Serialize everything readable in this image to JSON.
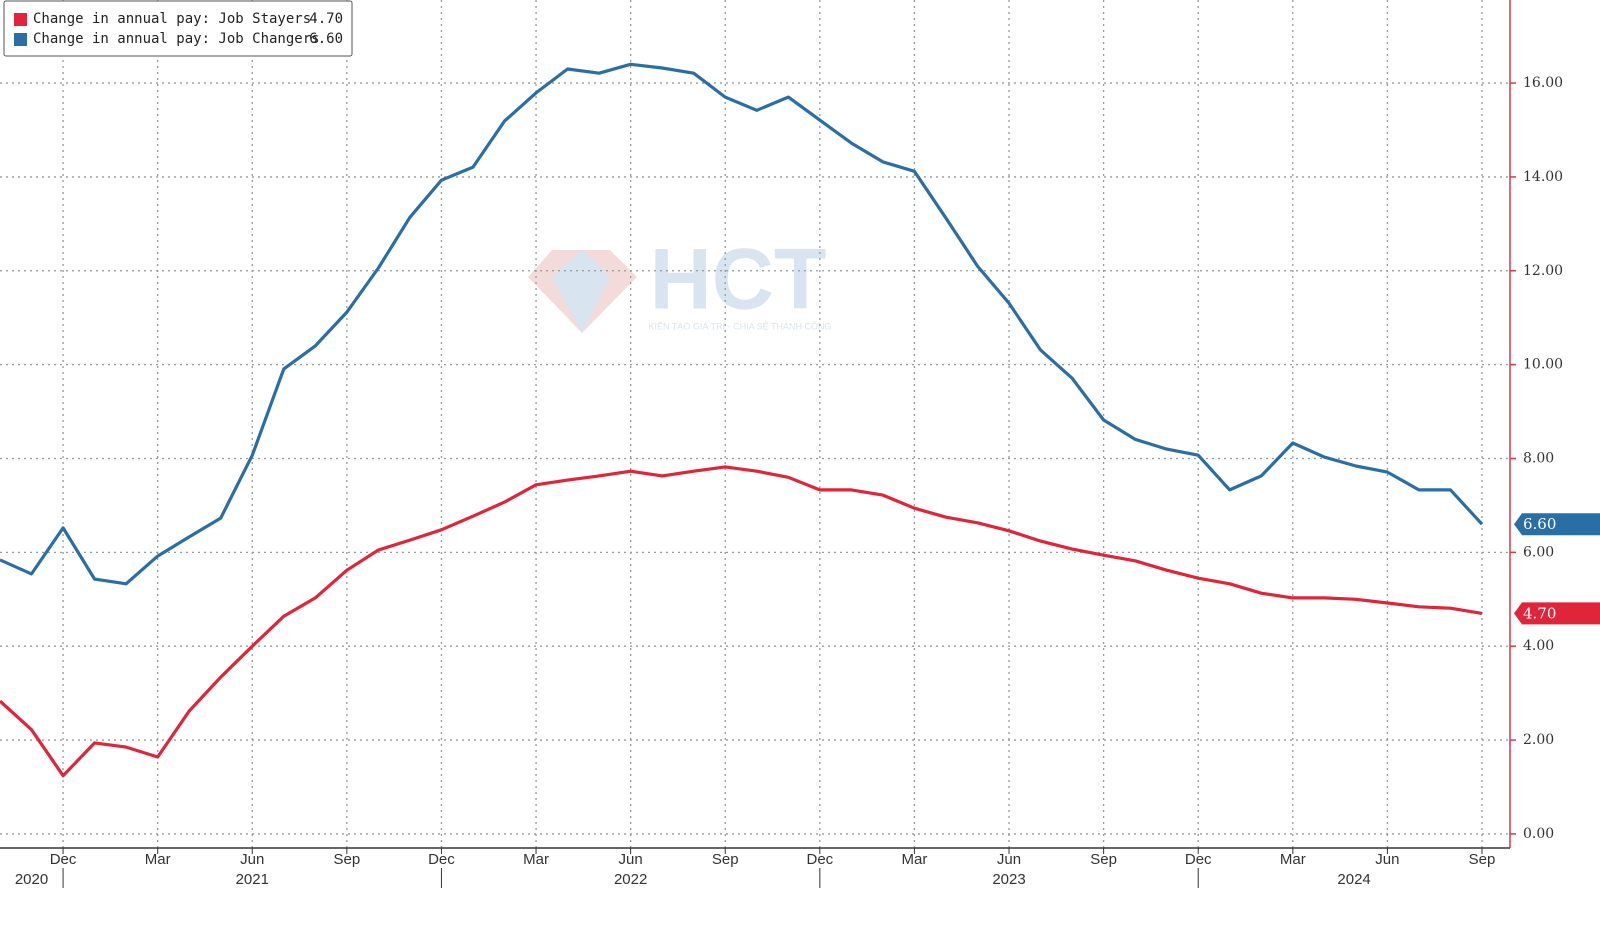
{
  "chart_data": {
    "type": "line",
    "watermark": {
      "brand": "HCT",
      "slogan": "KIẾN TẠO GIÁ TRỊ - CHIA SẺ THÀNH CÔNG"
    },
    "categories": [
      null,
      null,
      "Dec",
      null,
      null,
      "Mar",
      null,
      null,
      "Jun",
      null,
      null,
      "Sep",
      null,
      null,
      "Dec",
      null,
      null,
      "Mar",
      null,
      null,
      "Jun",
      null,
      null,
      "Sep",
      null,
      null,
      "Dec",
      null,
      null,
      "Mar",
      null,
      null,
      "Jun",
      null,
      null,
      "Sep",
      null,
      null,
      "Dec",
      null,
      null,
      "Mar",
      null,
      null,
      "Jun",
      null,
      null,
      "Sep"
    ],
    "years": [
      "2020",
      "2021",
      "2022",
      "2023",
      "2024"
    ],
    "series": [
      {
        "name": "Change in annual pay: Job Stayers",
        "color": "#e0243a",
        "values": [
          2.83,
          2.22,
          1.24,
          1.94,
          1.85,
          1.64,
          2.62,
          3.34,
          4.0,
          4.64,
          5.03,
          5.62,
          6.05,
          6.26,
          6.48,
          6.77,
          7.07,
          7.44,
          7.54,
          7.63,
          7.73,
          7.63,
          7.73,
          7.82,
          7.73,
          7.6,
          7.33,
          7.33,
          7.22,
          6.94,
          6.75,
          6.63,
          6.46,
          6.24,
          6.07,
          5.94,
          5.82,
          5.62,
          5.45,
          5.33,
          5.13,
          5.03,
          5.03,
          5.0,
          4.92,
          4.84,
          4.81,
          4.7
        ],
        "value_labels": [
          null,
          null,
          null,
          null,
          null,
          null,
          null,
          null,
          null,
          null,
          null,
          null,
          null,
          null,
          null,
          null,
          null,
          null,
          null,
          null,
          null,
          null,
          null,
          null,
          null,
          null,
          null,
          null,
          null,
          null,
          null,
          null,
          null,
          null,
          null,
          null,
          null,
          null,
          null,
          null,
          null,
          null,
          null,
          null,
          null,
          null,
          null,
          "4.70"
        ]
      },
      {
        "name": "Change in annual pay: Job Changers",
        "color": "#2a6ea6",
        "values": [
          5.84,
          5.54,
          6.52,
          5.43,
          5.33,
          5.92,
          6.33,
          6.73,
          8.07,
          9.91,
          10.4,
          11.12,
          12.06,
          13.14,
          13.93,
          14.21,
          15.19,
          15.79,
          16.3,
          16.21,
          16.4,
          16.32,
          16.21,
          15.7,
          15.42,
          15.7,
          15.21,
          14.72,
          14.32,
          14.12,
          13.12,
          12.1,
          11.31,
          10.31,
          9.71,
          8.82,
          8.41,
          8.2,
          8.07,
          7.33,
          7.63,
          8.33,
          8.03,
          7.84,
          7.71,
          7.33,
          7.33,
          6.6
        ],
        "value_labels": [
          null,
          null,
          null,
          null,
          null,
          null,
          null,
          null,
          null,
          null,
          null,
          null,
          null,
          null,
          null,
          null,
          null,
          null,
          null,
          null,
          null,
          null,
          null,
          null,
          null,
          null,
          null,
          null,
          null,
          null,
          null,
          null,
          null,
          null,
          null,
          null,
          null,
          null,
          null,
          null,
          null,
          null,
          null,
          null,
          null,
          null,
          null,
          "6.60"
        ]
      }
    ],
    "ylim": [
      -0.3,
      17.77
    ],
    "yticks": [
      {
        "value": 0,
        "label": "0.00"
      },
      {
        "value": 2,
        "label": "2.00"
      },
      {
        "value": 4,
        "label": "4.00"
      },
      {
        "value": 6,
        "label": "6.00"
      },
      {
        "value": 8,
        "label": "8.00"
      },
      {
        "value": 10,
        "label": "10.00"
      },
      {
        "value": 12,
        "label": "12.00"
      },
      {
        "value": 14,
        "label": "14.00"
      },
      {
        "value": 16,
        "label": "16.00"
      }
    ],
    "grid": true
  }
}
